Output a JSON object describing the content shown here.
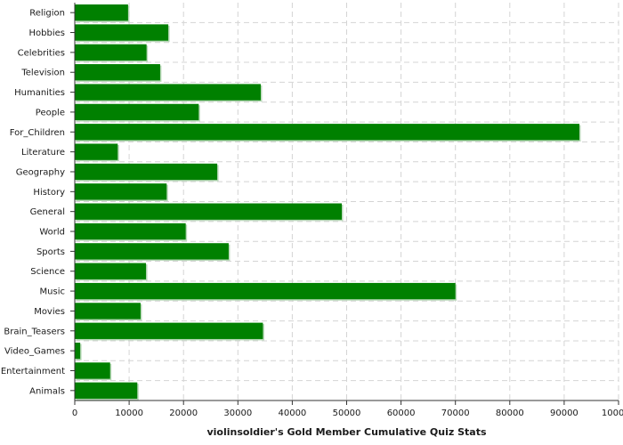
{
  "chart_data": {
    "type": "bar",
    "orientation": "horizontal",
    "categories": [
      "Religion",
      "Hobbies",
      "Celebrities",
      "Television",
      "Humanities",
      "People",
      "For_Children",
      "Literature",
      "Geography",
      "History",
      "General",
      "World",
      "Sports",
      "Science",
      "Music",
      "Movies",
      "Brain_Teasers",
      "Video_Games",
      "Entertainment",
      "Animals"
    ],
    "values": [
      9800,
      17200,
      13200,
      15700,
      34200,
      22800,
      92800,
      7900,
      26200,
      16900,
      49100,
      20400,
      28300,
      13100,
      70000,
      12100,
      34600,
      1000,
      6500,
      11500
    ],
    "xlabel": "violinsoldier's Gold Member Cumulative Quiz Stats",
    "ylabel": "",
    "xlim": [
      0,
      100000
    ],
    "xticks": [
      0,
      10000,
      20000,
      30000,
      40000,
      50000,
      60000,
      70000,
      80000,
      90000,
      100000
    ],
    "grid": true,
    "legend": "none",
    "colors": {
      "bar": "#008000",
      "bar_edge": "#b8d8b8",
      "grid": "#d4d4d4"
    }
  }
}
